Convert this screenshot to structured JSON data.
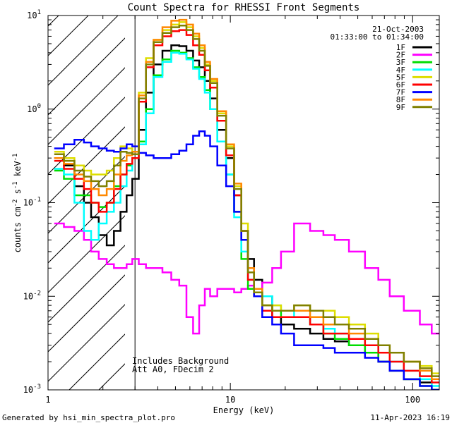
{
  "chart_data": {
    "type": "line",
    "title": "Count Spectra for RHESSI Front Segments",
    "xlabel": "Energy (keV)",
    "ylabel": "counts cm-2 s-1 keV-1",
    "xscale": "log",
    "yscale": "log",
    "xlim": [
      1,
      140
    ],
    "ylim": [
      0.001,
      10
    ],
    "x_ticks": [
      {
        "value": 1,
        "label": "1"
      },
      {
        "value": 10,
        "label": "10"
      },
      {
        "value": 100,
        "label": "100"
      }
    ],
    "y_ticks": [
      {
        "value": 10,
        "label": "10",
        "exp": "1"
      },
      {
        "value": 1,
        "label": "10",
        "exp": "0"
      },
      {
        "value": 0.1,
        "label": "10",
        "exp": "-1"
      },
      {
        "value": 0.01,
        "label": "10",
        "exp": "-2"
      },
      {
        "value": 0.001,
        "label": "10",
        "exp": "-3"
      }
    ],
    "date": "21-Oct-2003",
    "time_range": "01:33:00 to 01:34:00",
    "excluded_region_max_kev": 3,
    "annotation_line1": "Includes Background",
    "annotation_line2": "Att A0, FDecim 2",
    "footer_left": "Generated by hsi_min_spectra_plot.pro",
    "footer_right": "11-Apr-2023 16:19",
    "energies": [
      1.15,
      1.3,
      1.5,
      1.65,
      1.8,
      2.0,
      2.2,
      2.4,
      2.6,
      2.8,
      3.0,
      3.3,
      3.6,
      4.0,
      4.5,
      5.0,
      5.5,
      6.0,
      6.5,
      7.0,
      7.5,
      8.0,
      9.0,
      10.0,
      11.0,
      12.0,
      13.0,
      14.0,
      16.0,
      18.0,
      20.0,
      25.0,
      30.0,
      35.0,
      40.0,
      50.0,
      60.0,
      70.0,
      80.0,
      100.0,
      120.0,
      135.0
    ],
    "series": [
      {
        "name": "1F",
        "color": "#000000",
        "values": [
          0.3,
          0.25,
          0.15,
          0.1,
          0.07,
          0.045,
          0.035,
          0.05,
          0.08,
          0.12,
          0.18,
          0.6,
          1.5,
          3.0,
          4.2,
          4.8,
          4.7,
          4.2,
          3.3,
          2.8,
          2.0,
          1.3,
          0.6,
          0.3,
          0.12,
          0.05,
          0.025,
          0.015,
          0.01,
          0.006,
          0.005,
          0.0045,
          0.004,
          0.0035,
          0.0033,
          0.003,
          0.0025,
          0.002,
          0.0016,
          0.0013,
          0.0012,
          0.001
        ]
      },
      {
        "name": "2F",
        "color": "#ff00ff",
        "values": [
          0.06,
          0.055,
          0.05,
          0.04,
          0.03,
          0.025,
          0.022,
          0.02,
          0.02,
          0.022,
          0.025,
          0.022,
          0.02,
          0.02,
          0.018,
          0.015,
          0.013,
          0.006,
          0.004,
          0.008,
          0.012,
          0.01,
          0.012,
          0.012,
          0.011,
          0.012,
          0.013,
          0.012,
          0.014,
          0.02,
          0.03,
          0.06,
          0.05,
          0.045,
          0.04,
          0.03,
          0.02,
          0.015,
          0.01,
          0.007,
          0.005,
          0.004
        ]
      },
      {
        "name": "3F",
        "color": "#00dd00",
        "values": [
          0.22,
          0.18,
          0.12,
          0.12,
          0.1,
          0.09,
          0.1,
          0.15,
          0.2,
          0.25,
          0.3,
          0.45,
          1.0,
          2.3,
          3.4,
          4.2,
          4.0,
          3.5,
          2.8,
          2.2,
          1.6,
          1.0,
          0.45,
          0.2,
          0.08,
          0.025,
          0.012,
          0.01,
          0.008,
          0.007,
          0.006,
          0.006,
          0.005,
          0.004,
          0.0035,
          0.003,
          0.0025,
          0.002,
          0.0016,
          0.0013,
          0.0011,
          0.001
        ]
      },
      {
        "name": "4F",
        "color": "#00ffff",
        "values": [
          0.23,
          0.2,
          0.1,
          0.05,
          0.04,
          0.06,
          0.08,
          0.1,
          0.15,
          0.22,
          0.3,
          0.42,
          0.9,
          2.2,
          3.2,
          4.0,
          3.9,
          3.4,
          2.7,
          2.1,
          1.5,
          1.0,
          0.45,
          0.2,
          0.07,
          0.03,
          0.015,
          0.012,
          0.01,
          0.008,
          0.007,
          0.006,
          0.005,
          0.0045,
          0.004,
          0.0035,
          0.003,
          0.0025,
          0.002,
          0.0016,
          0.0013,
          0.0011
        ]
      },
      {
        "name": "5F",
        "color": "#dddd00",
        "values": [
          0.35,
          0.3,
          0.25,
          0.22,
          0.2,
          0.2,
          0.22,
          0.3,
          0.4,
          0.38,
          0.35,
          1.5,
          3.5,
          5.5,
          7.0,
          8.0,
          8.5,
          7.5,
          6.0,
          4.5,
          3.0,
          2.0,
          0.9,
          0.4,
          0.15,
          0.06,
          0.02,
          0.012,
          0.008,
          0.008,
          0.007,
          0.008,
          0.007,
          0.007,
          0.006,
          0.005,
          0.004,
          0.003,
          0.0025,
          0.002,
          0.0018,
          0.0015
        ]
      },
      {
        "name": "6F",
        "color": "#ff0000",
        "values": [
          0.28,
          0.23,
          0.18,
          0.14,
          0.1,
          0.08,
          0.1,
          0.14,
          0.2,
          0.26,
          0.3,
          1.2,
          2.8,
          4.8,
          6.0,
          6.8,
          7.0,
          6.2,
          4.8,
          3.8,
          2.6,
          1.7,
          0.75,
          0.32,
          0.12,
          0.04,
          0.015,
          0.01,
          0.007,
          0.006,
          0.006,
          0.006,
          0.005,
          0.004,
          0.004,
          0.0035,
          0.003,
          0.0025,
          0.002,
          0.0016,
          0.0014,
          0.0012
        ]
      },
      {
        "name": "7F",
        "color": "#0000ff",
        "values": [
          0.38,
          0.42,
          0.47,
          0.44,
          0.4,
          0.38,
          0.36,
          0.35,
          0.38,
          0.42,
          0.4,
          0.34,
          0.32,
          0.3,
          0.3,
          0.33,
          0.36,
          0.42,
          0.52,
          0.58,
          0.52,
          0.4,
          0.25,
          0.15,
          0.08,
          0.04,
          0.02,
          0.01,
          0.006,
          0.005,
          0.004,
          0.003,
          0.003,
          0.0028,
          0.0025,
          0.0025,
          0.0022,
          0.002,
          0.0016,
          0.0013,
          0.0011,
          0.001
        ]
      },
      {
        "name": "8F",
        "color": "#ff8800",
        "values": [
          0.3,
          0.26,
          0.2,
          0.17,
          0.14,
          0.12,
          0.14,
          0.2,
          0.28,
          0.32,
          0.35,
          1.4,
          3.2,
          5.5,
          7.5,
          8.8,
          9.0,
          8.0,
          6.4,
          4.8,
          3.2,
          2.1,
          0.95,
          0.42,
          0.16,
          0.05,
          0.02,
          0.012,
          0.008,
          0.007,
          0.007,
          0.007,
          0.006,
          0.005,
          0.005,
          0.004,
          0.0035,
          0.003,
          0.0025,
          0.002,
          0.0016,
          0.0013
        ]
      },
      {
        "name": "9F",
        "color": "#808000",
        "values": [
          0.33,
          0.28,
          0.22,
          0.19,
          0.17,
          0.15,
          0.17,
          0.25,
          0.35,
          0.34,
          0.33,
          1.3,
          3.0,
          5.2,
          6.5,
          7.5,
          7.8,
          7.0,
          5.6,
          4.2,
          2.9,
          1.9,
          0.85,
          0.38,
          0.14,
          0.05,
          0.018,
          0.011,
          0.008,
          0.007,
          0.007,
          0.008,
          0.007,
          0.006,
          0.005,
          0.0045,
          0.0035,
          0.003,
          0.0025,
          0.002,
          0.0017,
          0.0014
        ]
      }
    ]
  }
}
